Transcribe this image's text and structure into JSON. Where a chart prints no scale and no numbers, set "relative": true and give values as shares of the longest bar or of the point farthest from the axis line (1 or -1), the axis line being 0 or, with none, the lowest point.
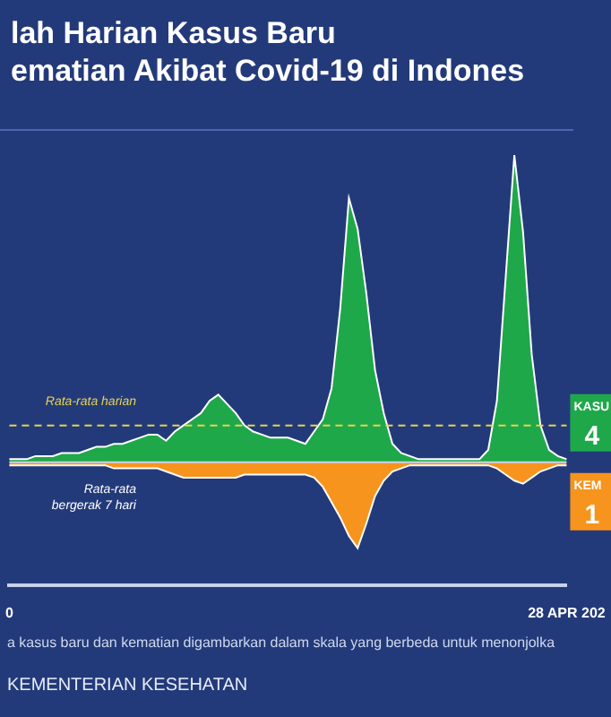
{
  "chart_data": {
    "type": "area",
    "title": "lah Harian Kasus Baru",
    "subtitle": "ematian Akibat Covid-19 di Indones",
    "relative": true,
    "legend": false,
    "categories": [
      "0",
      null,
      null,
      null,
      null,
      null,
      null,
      null,
      null,
      null,
      null,
      null,
      null,
      null,
      null,
      null,
      null,
      null,
      null,
      null,
      null,
      null,
      null,
      null,
      null,
      null,
      null,
      null,
      null,
      null,
      null,
      null,
      null,
      null,
      null,
      null,
      null,
      null,
      null,
      null,
      null,
      null,
      null,
      null,
      null,
      null,
      null,
      null,
      null,
      null,
      null,
      null,
      null,
      null,
      null,
      null,
      null,
      null,
      null,
      null,
      null,
      null,
      null,
      null,
      "28 APR 202"
    ],
    "series": [
      {
        "color": "#1fa84a",
        "values": [
          0.01,
          0.01,
          0.01,
          0.02,
          0.02,
          0.02,
          0.03,
          0.03,
          0.03,
          0.04,
          0.05,
          0.05,
          0.06,
          0.06,
          0.07,
          0.08,
          0.09,
          0.09,
          0.07,
          0.1,
          0.12,
          0.14,
          0.16,
          0.2,
          0.22,
          0.19,
          0.16,
          0.12,
          0.1,
          0.09,
          0.08,
          0.08,
          0.08,
          0.07,
          0.06,
          0.1,
          0.14,
          0.24,
          0.5,
          0.86,
          0.76,
          0.55,
          0.3,
          0.16,
          0.06,
          0.03,
          0.02,
          0.01,
          0.01,
          0.01,
          0.01,
          0.01,
          0.01,
          0.01,
          0.01,
          0.04,
          0.2,
          0.6,
          1,
          0.75,
          0.35,
          0.12,
          0.04,
          0.02,
          0.01
        ]
      },
      {
        "color": "#f7941d",
        "values": [
          -0.01,
          -0.01,
          -0.01,
          -0.01,
          -0.01,
          -0.01,
          -0.01,
          -0.01,
          -0.01,
          -0.01,
          -0.01,
          -0.01,
          -0.02,
          -0.02,
          -0.02,
          -0.02,
          -0.02,
          -0.02,
          -0.03,
          -0.04,
          -0.05,
          -0.05,
          -0.05,
          -0.05,
          -0.05,
          -0.05,
          -0.05,
          -0.04,
          -0.04,
          -0.04,
          -0.04,
          -0.04,
          -0.04,
          -0.04,
          -0.04,
          -0.05,
          -0.08,
          -0.13,
          -0.18,
          -0.24,
          -0.28,
          -0.2,
          -0.11,
          -0.06,
          -0.03,
          -0.02,
          -0.01,
          -0.01,
          -0.01,
          -0.01,
          -0.01,
          -0.01,
          -0.01,
          -0.01,
          -0.01,
          -0.01,
          -0.02,
          -0.04,
          -0.06,
          -0.07,
          -0.05,
          -0.03,
          -0.02,
          -0.01,
          -0.01
        ]
      }
    ],
    "ref_lines": [
      {
        "axis": "y",
        "value": 0.12,
        "color": "#e8d44d",
        "line_style": "dashed"
      }
    ],
    "annotations": [
      "Rata-rata harian",
      "Rata-rata bergerak 7 hari",
      "KASU",
      "4",
      "KEM",
      "1",
      "a kasus baru dan kematian digambarkan dalam skala yang berbeda untuk menonjolka",
      "KEMENTERIAN KESEHATAN"
    ]
  }
}
